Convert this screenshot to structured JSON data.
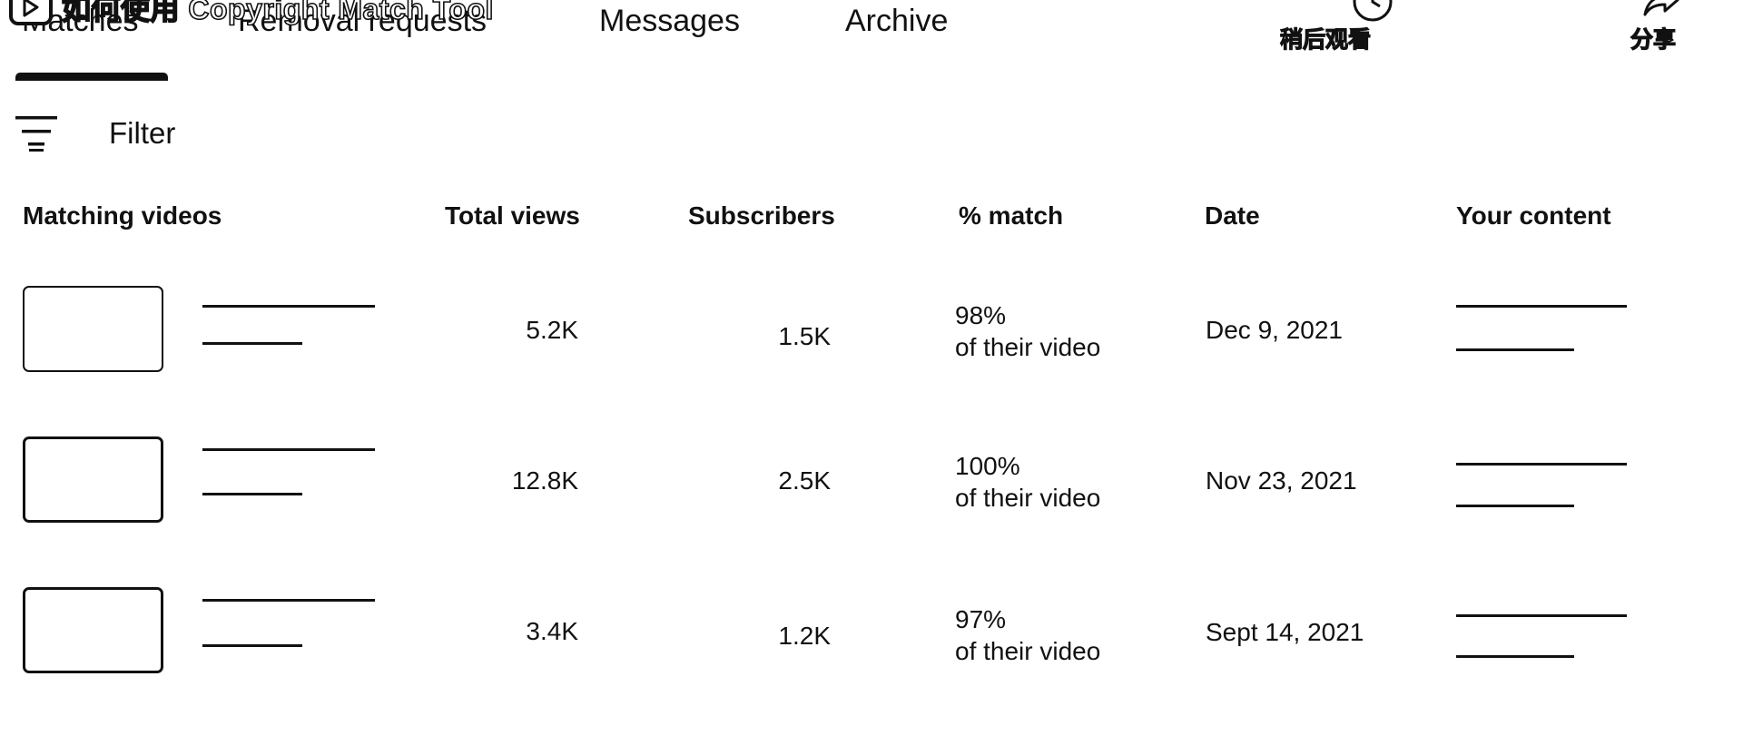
{
  "video_overlay": {
    "title": "如何使用 Copyright Match Tool",
    "actions": [
      {
        "label": "稍后观看",
        "icon": "clock-icon"
      },
      {
        "label": "分享",
        "icon": "share-icon"
      }
    ]
  },
  "tabs": [
    {
      "label": "Matches",
      "selected": true
    },
    {
      "label": "Removal requests",
      "selected": false
    },
    {
      "label": "Messages",
      "selected": false
    },
    {
      "label": "Archive",
      "selected": false
    }
  ],
  "filter": {
    "label": "Filter",
    "icon": "filter-icon"
  },
  "table": {
    "headers": {
      "matching_videos": "Matching videos",
      "total_views": "Total views",
      "subscribers": "Subscribers",
      "match": "% match",
      "date": "Date",
      "your_content": "Your content"
    },
    "rows": [
      {
        "total_views": "5.2K",
        "subscribers": "1.5K",
        "match_pct": "98%",
        "match_note": "of their video",
        "date": "Dec 9, 2021"
      },
      {
        "total_views": "12.8K",
        "subscribers": "2.5K",
        "match_pct": "100%",
        "match_note": "of their video",
        "date": "Nov 23, 2021"
      },
      {
        "total_views": "3.4K",
        "subscribers": "1.2K",
        "match_pct": "97%",
        "match_note": "of their video",
        "date": "Sept 14, 2021"
      }
    ]
  }
}
